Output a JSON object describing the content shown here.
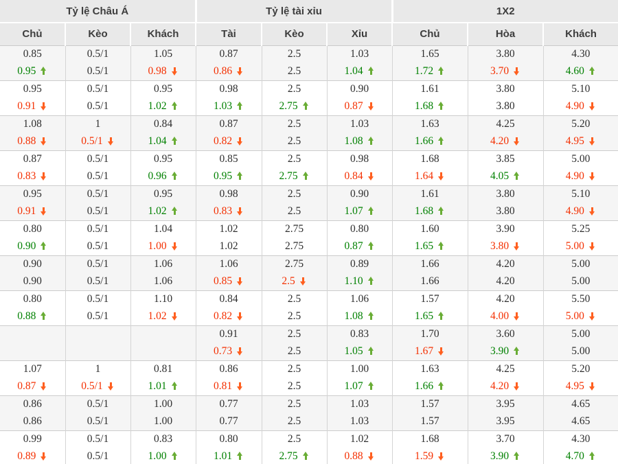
{
  "colors": {
    "up_text": "#008000",
    "down_text": "#f42f00",
    "up_arrow": "#69ad35",
    "down_arrow": "#ff5f1f",
    "header_bg": "#e9e9e9",
    "zebra_bg": "#f5f5f5"
  },
  "table": {
    "group_headers": [
      {
        "label": "Tỷ lệ Châu Á",
        "span": 3
      },
      {
        "label": "Tỷ lệ tài xỉu",
        "span": 3
      },
      {
        "label": "1X2",
        "span": 3
      }
    ],
    "columns": [
      "Chủ",
      "Kèo",
      "Khách",
      "Tài",
      "Kèo",
      "Xỉu",
      "Chủ",
      "Hòa",
      "Khách"
    ],
    "row_groups": [
      {
        "rows": [
          [
            {
              "v": "0.85",
              "t": ""
            },
            {
              "v": "0.5/1",
              "t": ""
            },
            {
              "v": "1.05",
              "t": ""
            },
            {
              "v": "0.87",
              "t": ""
            },
            {
              "v": "2.5",
              "t": ""
            },
            {
              "v": "1.03",
              "t": ""
            },
            {
              "v": "1.65",
              "t": ""
            },
            {
              "v": "3.80",
              "t": ""
            },
            {
              "v": "4.30",
              "t": ""
            }
          ],
          [
            {
              "v": "0.95",
              "t": "up"
            },
            {
              "v": "0.5/1",
              "t": ""
            },
            {
              "v": "0.98",
              "t": "down"
            },
            {
              "v": "0.86",
              "t": "down"
            },
            {
              "v": "2.5",
              "t": ""
            },
            {
              "v": "1.04",
              "t": "up"
            },
            {
              "v": "1.72",
              "t": "up"
            },
            {
              "v": "3.70",
              "t": "down"
            },
            {
              "v": "4.60",
              "t": "up"
            }
          ]
        ]
      },
      {
        "rows": [
          [
            {
              "v": "0.95",
              "t": ""
            },
            {
              "v": "0.5/1",
              "t": ""
            },
            {
              "v": "0.95",
              "t": ""
            },
            {
              "v": "0.98",
              "t": ""
            },
            {
              "v": "2.5",
              "t": ""
            },
            {
              "v": "0.90",
              "t": ""
            },
            {
              "v": "1.61",
              "t": ""
            },
            {
              "v": "3.80",
              "t": ""
            },
            {
              "v": "5.10",
              "t": ""
            }
          ],
          [
            {
              "v": "0.91",
              "t": "down"
            },
            {
              "v": "0.5/1",
              "t": ""
            },
            {
              "v": "1.02",
              "t": "up"
            },
            {
              "v": "1.03",
              "t": "up"
            },
            {
              "v": "2.75",
              "t": "up"
            },
            {
              "v": "0.87",
              "t": "down"
            },
            {
              "v": "1.68",
              "t": "up"
            },
            {
              "v": "3.80",
              "t": ""
            },
            {
              "v": "4.90",
              "t": "down"
            }
          ]
        ]
      },
      {
        "rows": [
          [
            {
              "v": "1.08",
              "t": ""
            },
            {
              "v": "1",
              "t": ""
            },
            {
              "v": "0.84",
              "t": ""
            },
            {
              "v": "0.87",
              "t": ""
            },
            {
              "v": "2.5",
              "t": ""
            },
            {
              "v": "1.03",
              "t": ""
            },
            {
              "v": "1.63",
              "t": ""
            },
            {
              "v": "4.25",
              "t": ""
            },
            {
              "v": "5.20",
              "t": ""
            }
          ],
          [
            {
              "v": "0.88",
              "t": "down"
            },
            {
              "v": "0.5/1",
              "t": "down"
            },
            {
              "v": "1.04",
              "t": "up"
            },
            {
              "v": "0.82",
              "t": "down"
            },
            {
              "v": "2.5",
              "t": ""
            },
            {
              "v": "1.08",
              "t": "up"
            },
            {
              "v": "1.66",
              "t": "up"
            },
            {
              "v": "4.20",
              "t": "down"
            },
            {
              "v": "4.95",
              "t": "down"
            }
          ]
        ]
      },
      {
        "rows": [
          [
            {
              "v": "0.87",
              "t": ""
            },
            {
              "v": "0.5/1",
              "t": ""
            },
            {
              "v": "0.95",
              "t": ""
            },
            {
              "v": "0.85",
              "t": ""
            },
            {
              "v": "2.5",
              "t": ""
            },
            {
              "v": "0.98",
              "t": ""
            },
            {
              "v": "1.68",
              "t": ""
            },
            {
              "v": "3.85",
              "t": ""
            },
            {
              "v": "5.00",
              "t": ""
            }
          ],
          [
            {
              "v": "0.83",
              "t": "down"
            },
            {
              "v": "0.5/1",
              "t": ""
            },
            {
              "v": "0.96",
              "t": "up"
            },
            {
              "v": "0.95",
              "t": "up"
            },
            {
              "v": "2.75",
              "t": "up"
            },
            {
              "v": "0.84",
              "t": "down"
            },
            {
              "v": "1.64",
              "t": "down"
            },
            {
              "v": "4.05",
              "t": "up"
            },
            {
              "v": "4.90",
              "t": "down"
            }
          ]
        ]
      },
      {
        "rows": [
          [
            {
              "v": "0.95",
              "t": ""
            },
            {
              "v": "0.5/1",
              "t": ""
            },
            {
              "v": "0.95",
              "t": ""
            },
            {
              "v": "0.98",
              "t": ""
            },
            {
              "v": "2.5",
              "t": ""
            },
            {
              "v": "0.90",
              "t": ""
            },
            {
              "v": "1.61",
              "t": ""
            },
            {
              "v": "3.80",
              "t": ""
            },
            {
              "v": "5.10",
              "t": ""
            }
          ],
          [
            {
              "v": "0.91",
              "t": "down"
            },
            {
              "v": "0.5/1",
              "t": ""
            },
            {
              "v": "1.02",
              "t": "up"
            },
            {
              "v": "0.83",
              "t": "down"
            },
            {
              "v": "2.5",
              "t": ""
            },
            {
              "v": "1.07",
              "t": "up"
            },
            {
              "v": "1.68",
              "t": "up"
            },
            {
              "v": "3.80",
              "t": ""
            },
            {
              "v": "4.90",
              "t": "down"
            }
          ]
        ]
      },
      {
        "rows": [
          [
            {
              "v": "0.80",
              "t": ""
            },
            {
              "v": "0.5/1",
              "t": ""
            },
            {
              "v": "1.04",
              "t": ""
            },
            {
              "v": "1.02",
              "t": ""
            },
            {
              "v": "2.75",
              "t": ""
            },
            {
              "v": "0.80",
              "t": ""
            },
            {
              "v": "1.60",
              "t": ""
            },
            {
              "v": "3.90",
              "t": ""
            },
            {
              "v": "5.25",
              "t": ""
            }
          ],
          [
            {
              "v": "0.90",
              "t": "up"
            },
            {
              "v": "0.5/1",
              "t": ""
            },
            {
              "v": "1.00",
              "t": "down"
            },
            {
              "v": "1.02",
              "t": ""
            },
            {
              "v": "2.75",
              "t": ""
            },
            {
              "v": "0.87",
              "t": "up"
            },
            {
              "v": "1.65",
              "t": "up"
            },
            {
              "v": "3.80",
              "t": "down"
            },
            {
              "v": "5.00",
              "t": "down"
            }
          ]
        ]
      },
      {
        "rows": [
          [
            {
              "v": "0.90",
              "t": ""
            },
            {
              "v": "0.5/1",
              "t": ""
            },
            {
              "v": "1.06",
              "t": ""
            },
            {
              "v": "1.06",
              "t": ""
            },
            {
              "v": "2.75",
              "t": ""
            },
            {
              "v": "0.89",
              "t": ""
            },
            {
              "v": "1.66",
              "t": ""
            },
            {
              "v": "4.20",
              "t": ""
            },
            {
              "v": "5.00",
              "t": ""
            }
          ],
          [
            {
              "v": "0.90",
              "t": ""
            },
            {
              "v": "0.5/1",
              "t": ""
            },
            {
              "v": "1.06",
              "t": ""
            },
            {
              "v": "0.85",
              "t": "down"
            },
            {
              "v": "2.5",
              "t": "down"
            },
            {
              "v": "1.10",
              "t": "up"
            },
            {
              "v": "1.66",
              "t": ""
            },
            {
              "v": "4.20",
              "t": ""
            },
            {
              "v": "5.00",
              "t": ""
            }
          ]
        ]
      },
      {
        "rows": [
          [
            {
              "v": "0.80",
              "t": ""
            },
            {
              "v": "0.5/1",
              "t": ""
            },
            {
              "v": "1.10",
              "t": ""
            },
            {
              "v": "0.84",
              "t": ""
            },
            {
              "v": "2.5",
              "t": ""
            },
            {
              "v": "1.06",
              "t": ""
            },
            {
              "v": "1.57",
              "t": ""
            },
            {
              "v": "4.20",
              "t": ""
            },
            {
              "v": "5.50",
              "t": ""
            }
          ],
          [
            {
              "v": "0.88",
              "t": "up"
            },
            {
              "v": "0.5/1",
              "t": ""
            },
            {
              "v": "1.02",
              "t": "down"
            },
            {
              "v": "0.82",
              "t": "down"
            },
            {
              "v": "2.5",
              "t": ""
            },
            {
              "v": "1.08",
              "t": "up"
            },
            {
              "v": "1.65",
              "t": "up"
            },
            {
              "v": "4.00",
              "t": "down"
            },
            {
              "v": "5.00",
              "t": "down"
            }
          ]
        ]
      },
      {
        "rows": [
          [
            {
              "v": "",
              "t": ""
            },
            {
              "v": "",
              "t": ""
            },
            {
              "v": "",
              "t": ""
            },
            {
              "v": "0.91",
              "t": ""
            },
            {
              "v": "2.5",
              "t": ""
            },
            {
              "v": "0.83",
              "t": ""
            },
            {
              "v": "1.70",
              "t": ""
            },
            {
              "v": "3.60",
              "t": ""
            },
            {
              "v": "5.00",
              "t": ""
            }
          ],
          [
            {
              "v": "",
              "t": ""
            },
            {
              "v": "",
              "t": ""
            },
            {
              "v": "",
              "t": ""
            },
            {
              "v": "0.73",
              "t": "down"
            },
            {
              "v": "2.5",
              "t": ""
            },
            {
              "v": "1.05",
              "t": "up"
            },
            {
              "v": "1.67",
              "t": "down"
            },
            {
              "v": "3.90",
              "t": "up"
            },
            {
              "v": "5.00",
              "t": ""
            }
          ]
        ]
      },
      {
        "rows": [
          [
            {
              "v": "1.07",
              "t": ""
            },
            {
              "v": "1",
              "t": ""
            },
            {
              "v": "0.81",
              "t": ""
            },
            {
              "v": "0.86",
              "t": ""
            },
            {
              "v": "2.5",
              "t": ""
            },
            {
              "v": "1.00",
              "t": ""
            },
            {
              "v": "1.63",
              "t": ""
            },
            {
              "v": "4.25",
              "t": ""
            },
            {
              "v": "5.20",
              "t": ""
            }
          ],
          [
            {
              "v": "0.87",
              "t": "down"
            },
            {
              "v": "0.5/1",
              "t": "down"
            },
            {
              "v": "1.01",
              "t": "up"
            },
            {
              "v": "0.81",
              "t": "down"
            },
            {
              "v": "2.5",
              "t": ""
            },
            {
              "v": "1.07",
              "t": "up"
            },
            {
              "v": "1.66",
              "t": "up"
            },
            {
              "v": "4.20",
              "t": "down"
            },
            {
              "v": "4.95",
              "t": "down"
            }
          ]
        ]
      },
      {
        "rows": [
          [
            {
              "v": "0.86",
              "t": ""
            },
            {
              "v": "0.5/1",
              "t": ""
            },
            {
              "v": "1.00",
              "t": ""
            },
            {
              "v": "0.77",
              "t": ""
            },
            {
              "v": "2.5",
              "t": ""
            },
            {
              "v": "1.03",
              "t": ""
            },
            {
              "v": "1.57",
              "t": ""
            },
            {
              "v": "3.95",
              "t": ""
            },
            {
              "v": "4.65",
              "t": ""
            }
          ],
          [
            {
              "v": "0.86",
              "t": ""
            },
            {
              "v": "0.5/1",
              "t": ""
            },
            {
              "v": "1.00",
              "t": ""
            },
            {
              "v": "0.77",
              "t": ""
            },
            {
              "v": "2.5",
              "t": ""
            },
            {
              "v": "1.03",
              "t": ""
            },
            {
              "v": "1.57",
              "t": ""
            },
            {
              "v": "3.95",
              "t": ""
            },
            {
              "v": "4.65",
              "t": ""
            }
          ]
        ]
      },
      {
        "rows": [
          [
            {
              "v": "0.99",
              "t": ""
            },
            {
              "v": "0.5/1",
              "t": ""
            },
            {
              "v": "0.83",
              "t": ""
            },
            {
              "v": "0.80",
              "t": ""
            },
            {
              "v": "2.5",
              "t": ""
            },
            {
              "v": "1.02",
              "t": ""
            },
            {
              "v": "1.68",
              "t": ""
            },
            {
              "v": "3.70",
              "t": ""
            },
            {
              "v": "4.30",
              "t": ""
            }
          ],
          [
            {
              "v": "0.89",
              "t": "down"
            },
            {
              "v": "0.5/1",
              "t": ""
            },
            {
              "v": "1.00",
              "t": "up"
            },
            {
              "v": "1.01",
              "t": "up"
            },
            {
              "v": "2.75",
              "t": "up"
            },
            {
              "v": "0.88",
              "t": "down"
            },
            {
              "v": "1.59",
              "t": "down"
            },
            {
              "v": "3.90",
              "t": "up"
            },
            {
              "v": "4.70",
              "t": "up"
            }
          ]
        ]
      }
    ]
  }
}
